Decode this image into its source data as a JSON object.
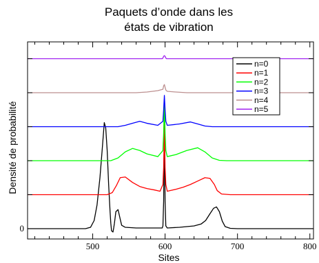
{
  "chart_data": {
    "type": "line",
    "title": [
      "Paquets d’onde dans les",
      "états de vibration"
    ],
    "xlabel": "Sites",
    "ylabel": "Densité de probabilité",
    "xlim": [
      410,
      805
    ],
    "x_ticks": [
      500,
      600,
      700,
      800
    ],
    "x_tick_labels": [
      "500",
      "600",
      "700",
      "800"
    ],
    "y_tick_labels": [
      "0"
    ],
    "legend_position": "top-right",
    "series": [
      {
        "name": "n=0",
        "color": "#000000",
        "offset": 0,
        "points": [
          [
            410,
            0
          ],
          [
            490,
            0
          ],
          [
            497,
            0.2
          ],
          [
            502,
            1.2
          ],
          [
            506,
            3.5
          ],
          [
            510,
            7.5
          ],
          [
            513,
            11.5
          ],
          [
            516,
            15.6
          ],
          [
            518,
            14.8
          ],
          [
            520,
            11.5
          ],
          [
            522,
            6.5
          ],
          [
            524,
            2.5
          ],
          [
            525,
            0.8
          ],
          [
            526,
            -0.3
          ],
          [
            528,
            -0.5
          ],
          [
            529,
            0.1
          ],
          [
            530,
            0.8
          ],
          [
            532,
            2.5
          ],
          [
            535,
            2.8
          ],
          [
            538,
            1.4
          ],
          [
            540,
            0.5
          ],
          [
            545,
            0.2
          ],
          [
            560,
            0.1
          ],
          [
            596,
            0.1
          ],
          [
            597,
            0.4
          ],
          [
            598,
            4.0
          ],
          [
            599,
            15.8
          ],
          [
            600,
            4.0
          ],
          [
            601,
            0.4
          ],
          [
            603,
            0.1
          ],
          [
            620,
            0.2
          ],
          [
            640,
            0.4
          ],
          [
            650,
            0.7
          ],
          [
            656,
            1.2
          ],
          [
            662,
            2.2
          ],
          [
            667,
            3.0
          ],
          [
            671,
            3.2
          ],
          [
            675,
            2.5
          ],
          [
            679,
            1.1
          ],
          [
            683,
            0.3
          ],
          [
            690,
            0.05
          ],
          [
            700,
            0
          ],
          [
            805,
            0
          ]
        ]
      },
      {
        "name": "n=1",
        "color": "#ff0000",
        "offset": 5,
        "points": [
          [
            410,
            0
          ],
          [
            520,
            0
          ],
          [
            527,
            0.3
          ],
          [
            533,
            1.4
          ],
          [
            538,
            2.5
          ],
          [
            545,
            2.6
          ],
          [
            555,
            1.8
          ],
          [
            565,
            1.2
          ],
          [
            575,
            0.9
          ],
          [
            585,
            0.7
          ],
          [
            593,
            0.5
          ],
          [
            597,
            1.5
          ],
          [
            598,
            4.0
          ],
          [
            599,
            10.5
          ],
          [
            600,
            4.0
          ],
          [
            601,
            1.5
          ],
          [
            603,
            0.5
          ],
          [
            615,
            0.8
          ],
          [
            625,
            1.1
          ],
          [
            635,
            1.5
          ],
          [
            645,
            2.0
          ],
          [
            655,
            2.5
          ],
          [
            662,
            2.4
          ],
          [
            668,
            1.5
          ],
          [
            672,
            0.6
          ],
          [
            678,
            0.1
          ],
          [
            690,
            0
          ],
          [
            805,
            0
          ]
        ]
      },
      {
        "name": "n=2",
        "color": "#00ff00",
        "offset": 10,
        "points": [
          [
            410,
            0
          ],
          [
            525,
            0
          ],
          [
            535,
            0.4
          ],
          [
            545,
            1.3
          ],
          [
            555,
            1.8
          ],
          [
            565,
            1.5
          ],
          [
            575,
            1.0
          ],
          [
            590,
            0.6
          ],
          [
            597,
            1.5
          ],
          [
            598,
            4.0
          ],
          [
            599,
            9.0
          ],
          [
            600,
            4.0
          ],
          [
            601,
            1.5
          ],
          [
            603,
            0.6
          ],
          [
            615,
            0.9
          ],
          [
            630,
            1.5
          ],
          [
            645,
            1.9
          ],
          [
            655,
            1.3
          ],
          [
            665,
            0.4
          ],
          [
            675,
            0.05
          ],
          [
            685,
            0
          ],
          [
            805,
            0
          ]
        ]
      },
      {
        "name": "n=3",
        "color": "#0000ff",
        "offset": 15,
        "points": [
          [
            410,
            0
          ],
          [
            535,
            0
          ],
          [
            545,
            0.2
          ],
          [
            555,
            0.5
          ],
          [
            565,
            0.8
          ],
          [
            575,
            0.5
          ],
          [
            590,
            0.2
          ],
          [
            597,
            0.8
          ],
          [
            598,
            2.5
          ],
          [
            599,
            4.6
          ],
          [
            600,
            2.5
          ],
          [
            601,
            0.8
          ],
          [
            603,
            0.2
          ],
          [
            620,
            0.4
          ],
          [
            635,
            0.7
          ],
          [
            645,
            0.4
          ],
          [
            655,
            0.1
          ],
          [
            665,
            0
          ],
          [
            805,
            0
          ]
        ]
      },
      {
        "name": "n=4",
        "color": "#bc8f8f",
        "offset": 20,
        "points": [
          [
            410,
            0
          ],
          [
            560,
            0
          ],
          [
            575,
            0.1
          ],
          [
            590,
            0.3
          ],
          [
            597,
            0.5
          ],
          [
            598,
            1.0
          ],
          [
            599,
            1.2
          ],
          [
            600,
            0.8
          ],
          [
            601,
            0.4
          ],
          [
            603,
            0.2
          ],
          [
            615,
            0.1
          ],
          [
            630,
            0
          ],
          [
            805,
            0
          ]
        ]
      },
      {
        "name": "n=5",
        "color": "#a020f0",
        "offset": 25,
        "points": [
          [
            410,
            0
          ],
          [
            596,
            0
          ],
          [
            597,
            0.1
          ],
          [
            598,
            0.35
          ],
          [
            599,
            0.45
          ],
          [
            600,
            0.35
          ],
          [
            601,
            0.1
          ],
          [
            602,
            0
          ],
          [
            805,
            0
          ]
        ]
      }
    ]
  }
}
